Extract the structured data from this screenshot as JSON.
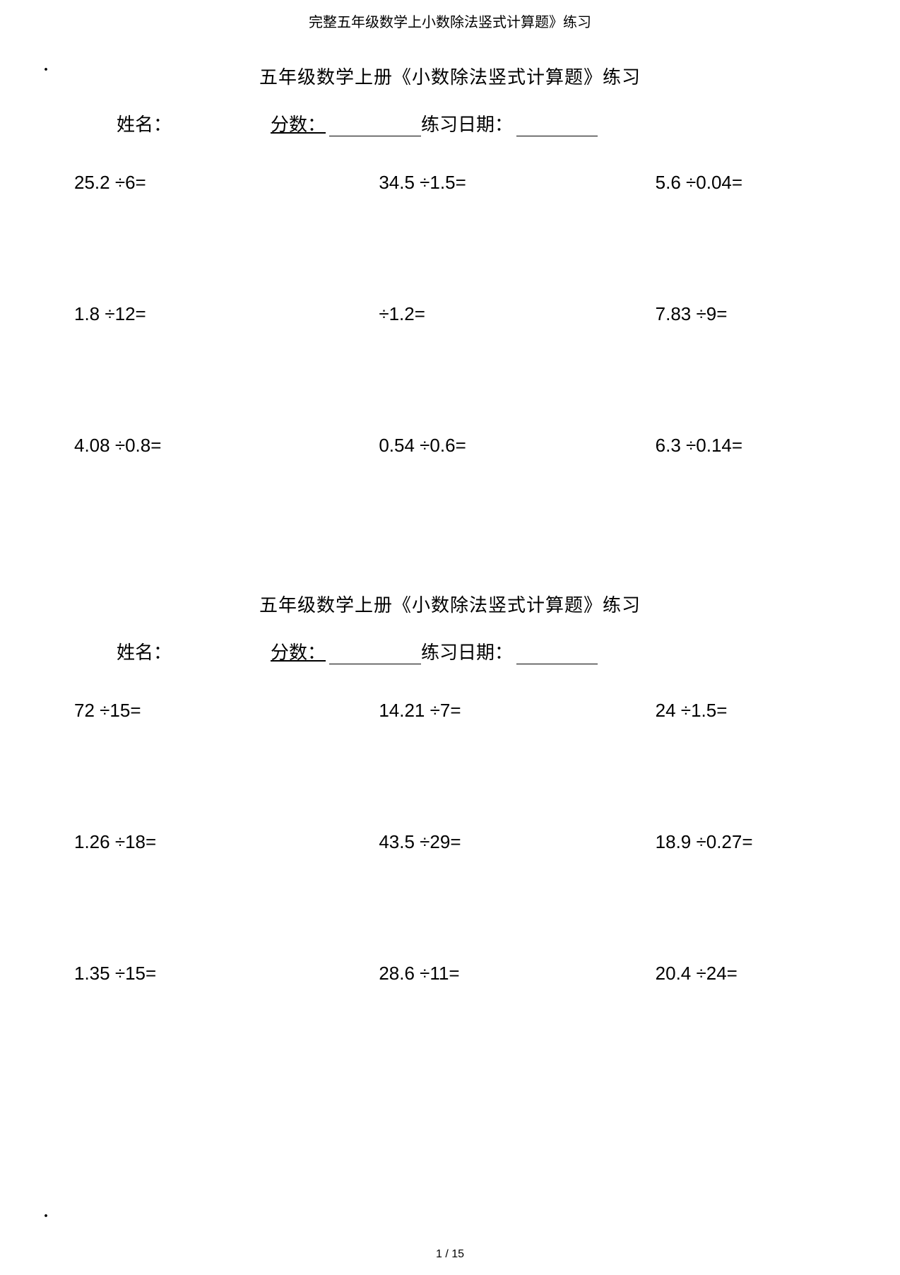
{
  "header": {
    "title": "完整五年级数学上小数除法竖式计算题》练习"
  },
  "markers": {
    "dot": "."
  },
  "worksheet1": {
    "title": "五年级数学上册《小数除法竖式计算题》练习",
    "labels": {
      "name": "姓名：",
      "score": "分数：",
      "date": "练习日期："
    },
    "problems": [
      "25.2 ÷6=",
      "34.5  ÷1.5=",
      "5.6 ÷0.04=",
      "1.8 ÷12=",
      "÷1.2=",
      "7.83 ÷9=",
      "4.08 ÷0.8=",
      "0.54 ÷0.6=",
      "6.3 ÷0.14="
    ]
  },
  "worksheet2": {
    "title": "五年级数学上册《小数除法竖式计算题》练习",
    "labels": {
      "name": "姓名：",
      "score": "分数：",
      "date": "练习日期："
    },
    "problems": [
      "72 ÷15=",
      "14.21 ÷7=",
      "24 ÷1.5=",
      "1.26 ÷18=",
      "43.5 ÷29=",
      "18.9 ÷0.27=",
      "1.35 ÷15=",
      "28.6 ÷11=",
      "20.4 ÷24="
    ]
  },
  "footer": {
    "pagination": "1 / 15"
  },
  "styling": {
    "background_color": "#ffffff",
    "text_color": "#000000",
    "title_fontsize": 26,
    "header_fontsize": 20,
    "problem_fontsize": 26,
    "info_fontsize": 26,
    "footer_fontsize": 16,
    "serif_font": "SimSun",
    "sans_font": "Arial",
    "underline_color": "#000000",
    "underline_width": 1.5
  }
}
